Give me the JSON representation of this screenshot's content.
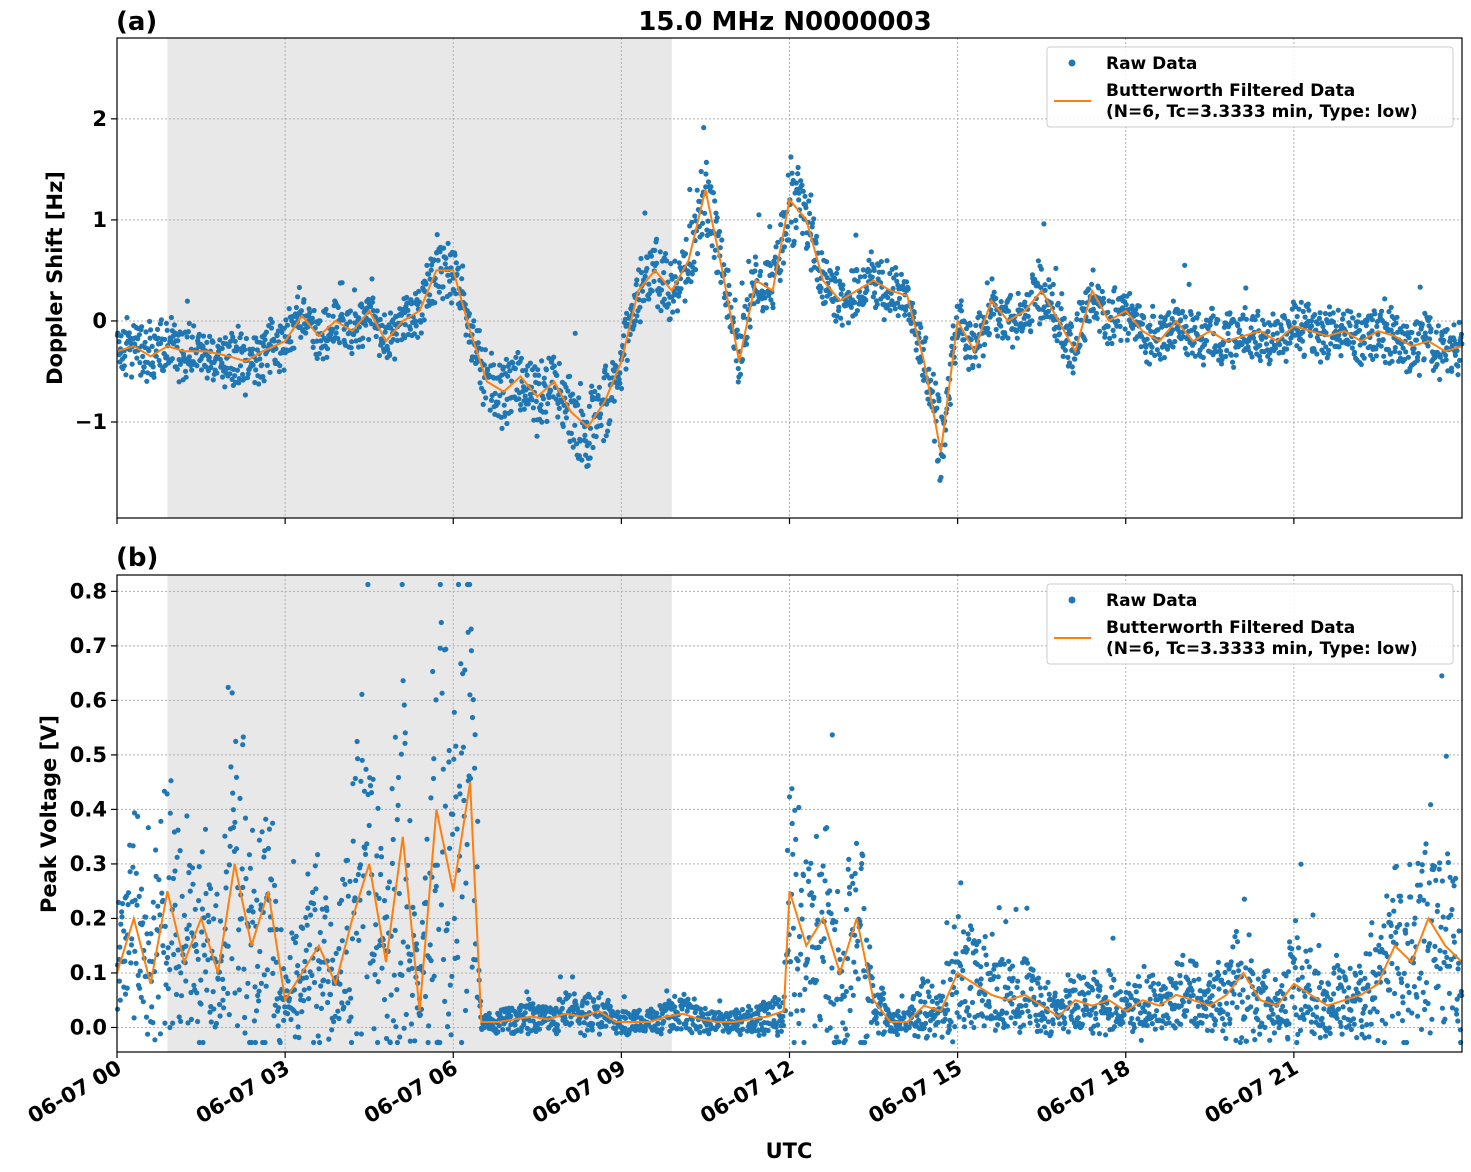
{
  "figure": {
    "title": "15.0 MHz N0000003",
    "xlabel": "UTC"
  },
  "legend": {
    "raw": "Raw Data",
    "filtered_line1": "Butterworth Filtered Data",
    "filtered_line2": "(N=6, Tc=3.3333 min, Type: low)"
  },
  "colors": {
    "raw": "#1f77b4",
    "filtered": "#ff7f0e",
    "shade": "#e8e8e8",
    "grid": "#b0b0b0"
  },
  "x_ticks": [
    "06-07 00",
    "06-07 03",
    "06-07 06",
    "06-07 09",
    "06-07 12",
    "06-07 15",
    "06-07 18",
    "06-07 21"
  ],
  "chart_data": [
    {
      "type": "scatter",
      "panel_label": "(a)",
      "ylabel": "Doppler Shift [Hz]",
      "xlim_hours": [
        0,
        24
      ],
      "ylim": [
        -1.95,
        2.8
      ],
      "yticks": [
        -1,
        0,
        1,
        2
      ],
      "ytick_labels": [
        "−1",
        "0",
        "1",
        "2"
      ],
      "shaded_span_hours": [
        0.9,
        9.9
      ],
      "grid": true,
      "legend_position": "upper right",
      "series": [
        {
          "name": "Butterworth Filtered Data",
          "style": "line",
          "x": [
            0,
            0.3,
            0.6,
            0.9,
            1.2,
            1.6,
            2.0,
            2.3,
            2.6,
            3.0,
            3.3,
            3.6,
            3.9,
            4.2,
            4.5,
            4.8,
            5.1,
            5.4,
            5.7,
            6.0,
            6.3,
            6.6,
            6.9,
            7.2,
            7.5,
            7.8,
            8.1,
            8.4,
            8.7,
            9.0,
            9.3,
            9.6,
            9.9,
            10.2,
            10.5,
            10.8,
            11.1,
            11.4,
            11.7,
            12.0,
            12.3,
            12.6,
            12.9,
            13.2,
            13.5,
            13.8,
            14.1,
            14.4,
            14.7,
            15.0,
            15.3,
            15.6,
            15.9,
            16.2,
            16.5,
            16.8,
            17.1,
            17.4,
            17.7,
            18.0,
            18.3,
            18.6,
            18.9,
            19.2,
            19.5,
            19.8,
            20.1,
            20.4,
            20.7,
            21.0,
            21.3,
            21.6,
            21.9,
            22.2,
            22.5,
            22.8,
            23.1,
            23.4,
            23.7,
            24.0
          ],
          "y": [
            -0.3,
            -0.25,
            -0.35,
            -0.25,
            -0.3,
            -0.3,
            -0.35,
            -0.4,
            -0.3,
            -0.2,
            0.05,
            -0.15,
            0.0,
            -0.1,
            0.1,
            -0.2,
            0.0,
            0.1,
            0.5,
            0.5,
            -0.1,
            -0.6,
            -0.7,
            -0.55,
            -0.75,
            -0.6,
            -0.9,
            -1.05,
            -0.8,
            -0.4,
            0.3,
            0.5,
            0.3,
            0.6,
            1.3,
            0.5,
            -0.4,
            0.4,
            0.3,
            1.2,
            1.0,
            0.4,
            0.2,
            0.3,
            0.4,
            0.3,
            0.25,
            -0.4,
            -1.3,
            0.0,
            -0.3,
            0.2,
            0.0,
            0.1,
            0.3,
            0.0,
            -0.3,
            0.3,
            0.0,
            0.1,
            -0.1,
            -0.2,
            0.0,
            -0.2,
            -0.1,
            -0.2,
            -0.15,
            -0.1,
            -0.2,
            -0.05,
            -0.1,
            -0.15,
            -0.1,
            -0.2,
            -0.1,
            -0.15,
            -0.25,
            -0.2,
            -0.3,
            -0.25
          ]
        },
        {
          "name": "Raw Data",
          "style": "points",
          "note": "dense scatter band around the filtered curve"
        }
      ]
    },
    {
      "type": "scatter",
      "panel_label": "(b)",
      "ylabel": "Peak Voltage [V]",
      "xlim_hours": [
        0,
        24
      ],
      "ylim": [
        -0.045,
        0.83
      ],
      "yticks": [
        0.0,
        0.1,
        0.2,
        0.3,
        0.4,
        0.5,
        0.6,
        0.7,
        0.8
      ],
      "ytick_labels": [
        "0.0",
        "0.1",
        "0.2",
        "0.3",
        "0.4",
        "0.5",
        "0.6",
        "0.7",
        "0.8"
      ],
      "shaded_span_hours": [
        0.9,
        9.9
      ],
      "grid": true,
      "legend_position": "upper right",
      "series": [
        {
          "name": "Butterworth Filtered Data",
          "style": "line",
          "x": [
            0,
            0.3,
            0.6,
            0.9,
            1.2,
            1.5,
            1.8,
            2.1,
            2.4,
            2.7,
            3.0,
            3.3,
            3.6,
            3.9,
            4.2,
            4.5,
            4.8,
            5.1,
            5.4,
            5.7,
            6.0,
            6.3,
            6.5,
            6.8,
            7.1,
            7.4,
            7.7,
            8.0,
            8.3,
            8.6,
            8.9,
            9.2,
            9.5,
            9.8,
            10.1,
            10.4,
            10.7,
            11.0,
            11.3,
            11.6,
            11.9,
            12.0,
            12.3,
            12.6,
            12.9,
            13.2,
            13.5,
            13.8,
            14.1,
            14.4,
            14.7,
            15.0,
            15.3,
            15.6,
            15.9,
            16.2,
            16.5,
            16.8,
            17.1,
            17.4,
            17.7,
            18.0,
            18.3,
            18.6,
            18.9,
            19.2,
            19.5,
            19.8,
            20.1,
            20.4,
            20.7,
            21.0,
            21.3,
            21.6,
            21.9,
            22.2,
            22.5,
            22.8,
            23.1,
            23.4,
            23.7,
            24.0
          ],
          "y": [
            0.1,
            0.2,
            0.08,
            0.25,
            0.12,
            0.2,
            0.1,
            0.3,
            0.15,
            0.25,
            0.05,
            0.1,
            0.15,
            0.08,
            0.2,
            0.3,
            0.12,
            0.35,
            0.03,
            0.4,
            0.25,
            0.45,
            0.01,
            0.01,
            0.015,
            0.02,
            0.015,
            0.025,
            0.02,
            0.03,
            0.01,
            0.01,
            0.01,
            0.02,
            0.025,
            0.015,
            0.01,
            0.01,
            0.015,
            0.02,
            0.03,
            0.25,
            0.15,
            0.2,
            0.1,
            0.2,
            0.05,
            0.01,
            0.01,
            0.04,
            0.03,
            0.1,
            0.08,
            0.06,
            0.05,
            0.06,
            0.04,
            0.02,
            0.05,
            0.04,
            0.05,
            0.03,
            0.05,
            0.04,
            0.06,
            0.05,
            0.04,
            0.06,
            0.1,
            0.05,
            0.04,
            0.08,
            0.06,
            0.04,
            0.05,
            0.06,
            0.08,
            0.15,
            0.12,
            0.2,
            0.15,
            0.12
          ]
        },
        {
          "name": "Raw Data",
          "style": "points",
          "note": "dense scatter band around the filtered curve"
        }
      ]
    }
  ]
}
